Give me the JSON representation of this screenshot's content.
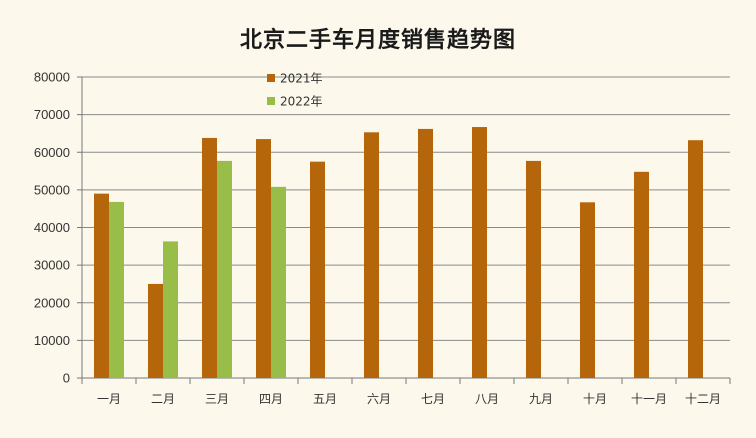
{
  "colors": {
    "series_2021": "#b5650a",
    "series_2022": "#98bd48",
    "grid": "#8a8a8a",
    "axis": "#777777",
    "background": "#fcf8ec"
  },
  "chart_data": {
    "type": "bar",
    "title": "北京二手车月度销售趋势图",
    "xlabel": "",
    "ylabel": "",
    "categories": [
      "一月",
      "二月",
      "三月",
      "四月",
      "五月",
      "六月",
      "七月",
      "八月",
      "九月",
      "十月",
      "十一月",
      "十二月"
    ],
    "series": [
      {
        "name": "2021年",
        "values": [
          49000,
          25000,
          63800,
          63500,
          57500,
          65300,
          66200,
          66700,
          57700,
          46700,
          54800,
          63200
        ]
      },
      {
        "name": "2022年",
        "values": [
          46800,
          36300,
          57700,
          50800,
          null,
          null,
          null,
          null,
          null,
          null,
          null,
          null
        ]
      }
    ],
    "ylim": [
      0,
      80000
    ],
    "yticks": [
      "0",
      "10000",
      "20000",
      "30000",
      "40000",
      "50000",
      "60000",
      "70000",
      "80000"
    ],
    "grid": true,
    "legend_position": "top-left"
  }
}
